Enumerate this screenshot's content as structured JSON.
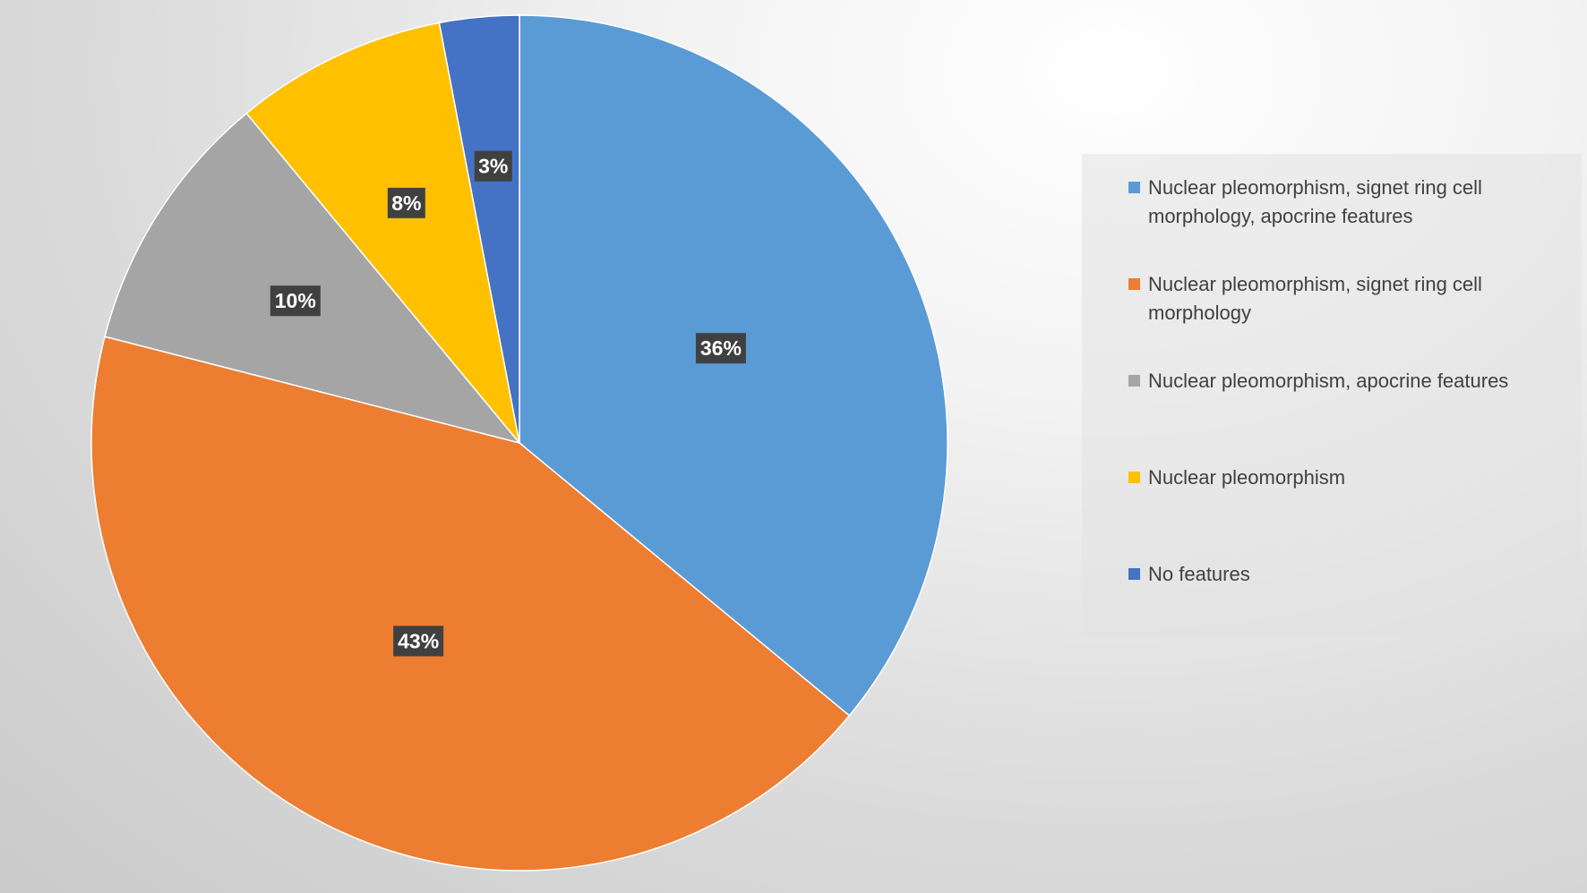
{
  "chart_data": {
    "type": "pie",
    "title": "",
    "start_angle_deg": 0,
    "direction": "clockwise",
    "data_label_format": "percent",
    "legend_position": "right",
    "slices": [
      {
        "name": "Nuclear pleomorphism, signet ring cell morphology, apocrine features",
        "value": 36,
        "label": "36%",
        "color": "#5B9BD5"
      },
      {
        "name": "Nuclear pleomorphism, signet ring cell morphology",
        "value": 43,
        "label": "43%",
        "color": "#ED7D31"
      },
      {
        "name": "Nuclear pleomorphism, apocrine features",
        "value": 10,
        "label": "10%",
        "color": "#A5A5A5"
      },
      {
        "name": "Nuclear pleomorphism",
        "value": 8,
        "label": "8%",
        "color": "#FFC000"
      },
      {
        "name": "No features",
        "value": 3,
        "label": "3%",
        "color": "#4472C4"
      }
    ]
  }
}
